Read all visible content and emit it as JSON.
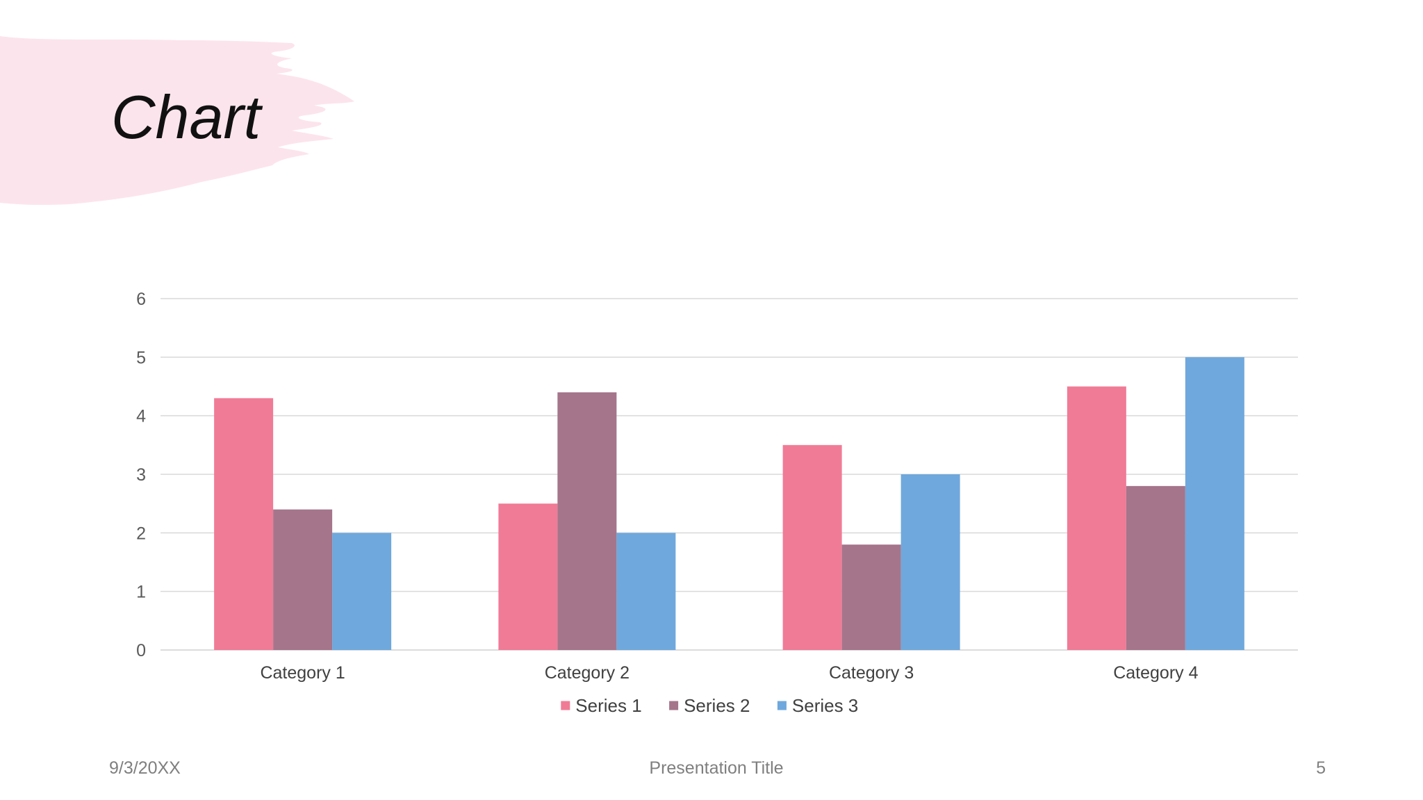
{
  "slide": {
    "title": "Chart",
    "brush_color": "#fce4ec"
  },
  "footer": {
    "date": "9/3/20XX",
    "presentation_title": "Presentation Title",
    "page_number": "5"
  },
  "chart_data": {
    "type": "bar",
    "categories": [
      "Category 1",
      "Category 2",
      "Category 3",
      "Category 4"
    ],
    "series": [
      {
        "name": "Series 1",
        "color": "#f07b96",
        "values": [
          4.3,
          2.5,
          3.5,
          4.5
        ]
      },
      {
        "name": "Series 2",
        "color": "#a5758b",
        "values": [
          2.4,
          4.4,
          1.8,
          2.8
        ]
      },
      {
        "name": "Series 3",
        "color": "#6fa8dc",
        "values": [
          2,
          2,
          3,
          5
        ]
      }
    ],
    "ylim": [
      0,
      6
    ],
    "yticks": [
      0,
      1,
      2,
      3,
      4,
      5,
      6
    ],
    "grid": true,
    "legend": "bottom"
  }
}
